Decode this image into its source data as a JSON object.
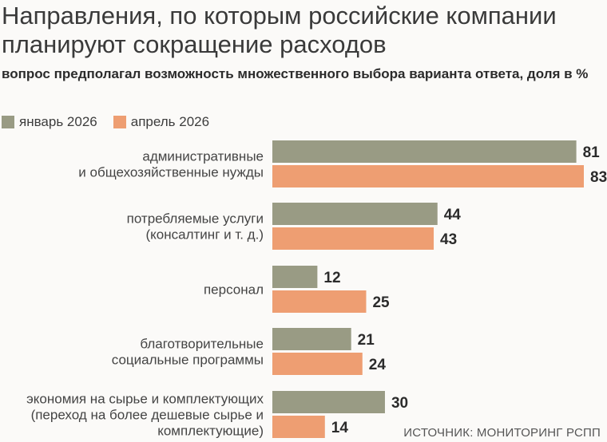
{
  "title": "Направления, по которым российские компании планируют сокращение расходов",
  "subtitle": "вопрос предполагал возможность множественного выбора варианта ответа, доля в %",
  "source": "ИСТОЧНИК: МОНИТОРИНГ РСПП",
  "colors": {
    "series_jan": "#999b84",
    "series_apr": "#ee9e72"
  },
  "chart_data": {
    "type": "bar",
    "orientation": "horizontal",
    "categories": [
      [
        "административные",
        "и общехозяйственные нужды"
      ],
      [
        "потребляемые услуги",
        "(консалтинг и т. д.)"
      ],
      [
        "персонал"
      ],
      [
        "благотворительные",
        "социальные программы"
      ],
      [
        "экономия на сырье и комплектующих",
        "(переход на более дешевые сырье и",
        "комплектующие)"
      ]
    ],
    "series": [
      {
        "name": "январь 2026",
        "values": [
          81,
          44,
          12,
          21,
          30
        ]
      },
      {
        "name": "апрель 2026",
        "values": [
          83,
          43,
          25,
          24,
          14
        ]
      }
    ],
    "xlim": [
      0,
      83
    ],
    "grid": false,
    "legend": "top-left"
  }
}
